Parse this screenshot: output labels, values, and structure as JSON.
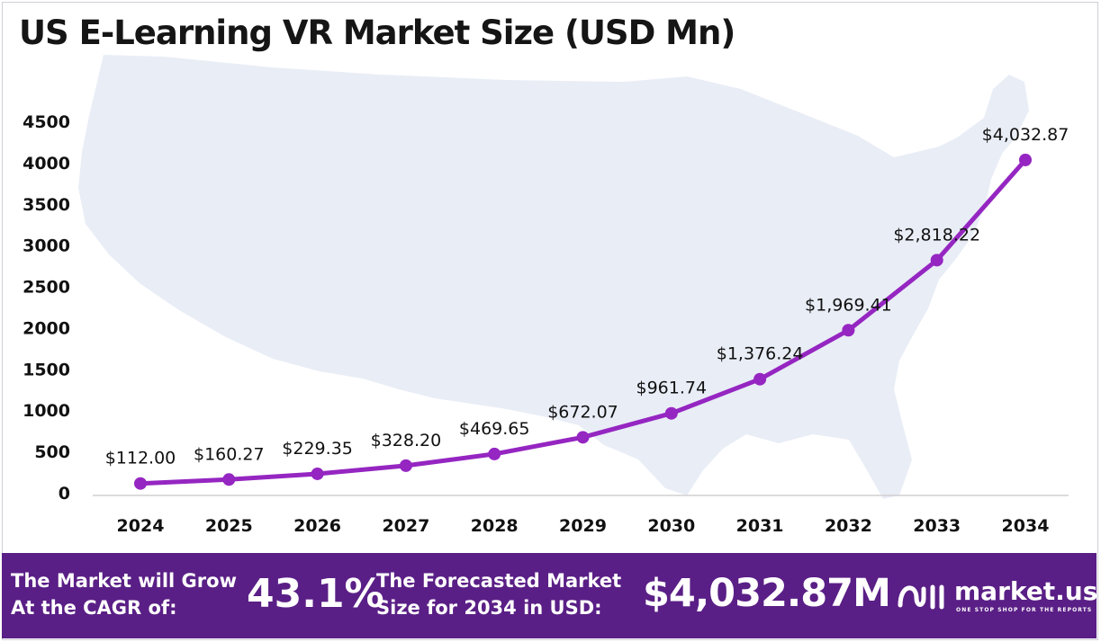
{
  "chart_data": {
    "type": "line",
    "title": "US E-Learning VR Market Size (USD Mn)",
    "categories": [
      "2024",
      "2025",
      "2026",
      "2027",
      "2028",
      "2029",
      "2030",
      "2031",
      "2032",
      "2033",
      "2034"
    ],
    "values": [
      112.0,
      160.27,
      229.35,
      328.2,
      469.65,
      672.07,
      961.74,
      1376.24,
      1969.41,
      2818.22,
      4032.87
    ],
    "data_labels": [
      "$112.00",
      "$160.27",
      "$229.35",
      "$328.20",
      "$469.65",
      "$672.07",
      "$961.74",
      "$1,376.24",
      "$1,969.41",
      "$2,818.22",
      "$4,032.87"
    ],
    "yticks": [
      0,
      500,
      1000,
      1500,
      2000,
      2500,
      3000,
      3500,
      4000,
      4500
    ],
    "ylim": [
      0,
      4500
    ],
    "xlabel": "",
    "ylabel": "",
    "line_color": "#9526c1",
    "grid": false
  },
  "footer": {
    "cagr_line1": "The Market will Grow",
    "cagr_line2": "At the CAGR of:",
    "cagr_value": "43.1%",
    "size_line1": "The Forecasted Market",
    "size_line2": "Size for 2034 in USD:",
    "size_value": "$4,032.87M",
    "brand": "market.us",
    "tagline": "ONE STOP SHOP FOR THE REPORTS",
    "background": "#5a1f86"
  }
}
